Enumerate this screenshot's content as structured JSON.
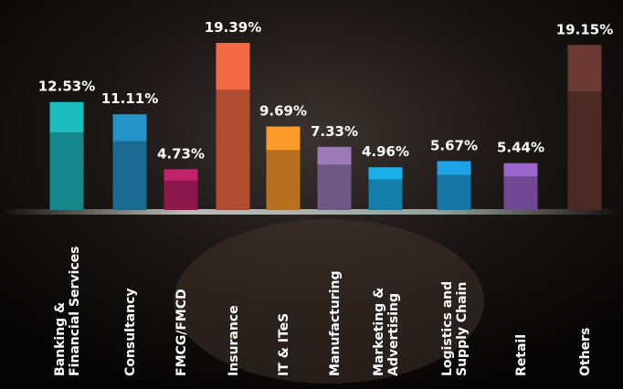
{
  "chart_data": {
    "type": "bar",
    "categories": [
      [
        "Banking &",
        "Financial Services"
      ],
      [
        "Consultancy"
      ],
      [
        "FMCG/FMCD"
      ],
      [
        "Insurance"
      ],
      [
        "IT & ITeS"
      ],
      [
        "Manufacturing"
      ],
      [
        "Marketing &",
        "Advertising"
      ],
      [
        "Logistics and",
        "Supply Chain"
      ],
      [
        "Retail"
      ],
      [
        "Others"
      ]
    ],
    "values": [
      12.53,
      11.11,
      4.73,
      19.39,
      9.69,
      7.33,
      4.96,
      5.67,
      5.44,
      19.15
    ],
    "value_labels": [
      "12.53%",
      "11.11%",
      "4.73%",
      "19.39%",
      "9.69%",
      "7.33%",
      "4.96%",
      "5.67%",
      "5.44%",
      "19.15%"
    ],
    "colors": [
      "#1dbdbf",
      "#2592c9",
      "#c2226a",
      "#f36b45",
      "#fd9b2b",
      "#9a7ab8",
      "#1cb0ea",
      "#1ea4e6",
      "#9a66cc",
      "#6b3a33"
    ]
  }
}
